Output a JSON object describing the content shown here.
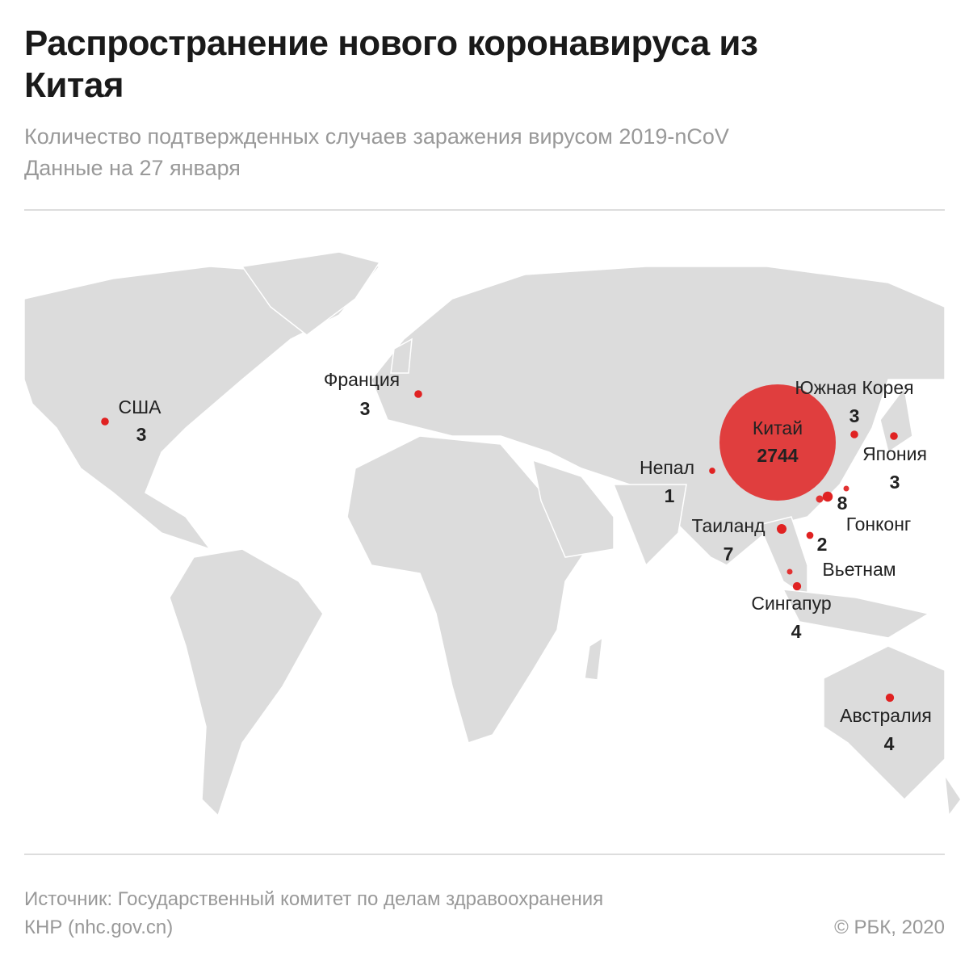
{
  "header": {
    "title": "Распространение нового коронавируса из Китая",
    "subtitle": "Количество подтвержденных случаев заражения вирусом 2019-nCoV",
    "date": "Данные на 27 января"
  },
  "locations": [
    {
      "name": "США",
      "value": 3
    },
    {
      "name": "Франция",
      "value": 3
    },
    {
      "name": "Китай",
      "value": 2744
    },
    {
      "name": "Южная Корея",
      "value": 3
    },
    {
      "name": "Япония",
      "value": 3
    },
    {
      "name": "Непал",
      "value": 1
    },
    {
      "name": "Гонконг",
      "value": 8
    },
    {
      "name": "Таиланд",
      "value": 7
    },
    {
      "name": "Вьетнам",
      "value": 2
    },
    {
      "name": "Сингапур",
      "value": 4
    },
    {
      "name": "Австралия",
      "value": 4
    }
  ],
  "footer": {
    "source_line1": "Источник: Государственный комитет по делам здравоохранения",
    "source_line2": "КНР (nhc.gov.cn)",
    "copyright": "© РБК, 2020"
  }
}
